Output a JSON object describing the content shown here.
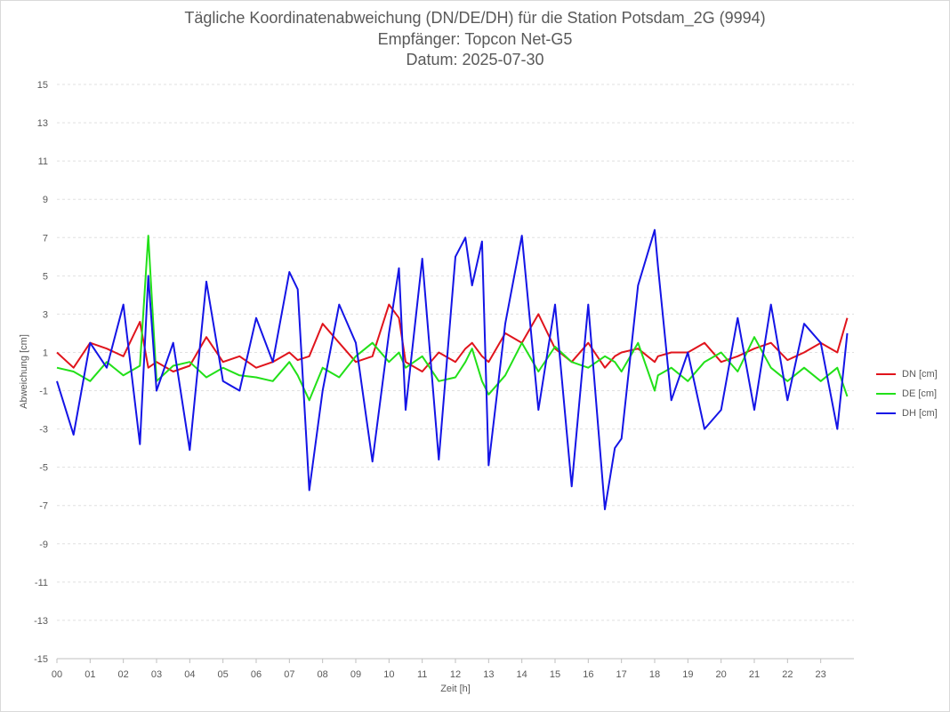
{
  "chart_data": {
    "type": "line",
    "title": "Tägliche Koordinatenabweichung (DN/DE/DH) für die Station Potsdam_2G (9994)",
    "subtitle": "Empfänger: Topcon Net-G5",
    "date_line": "Datum: 2025-07-30",
    "xlabel": "Zeit [h]",
    "ylabel": "Abweichung [cm]",
    "xlim": [
      0,
      24
    ],
    "ylim": [
      -15,
      15
    ],
    "x_ticks": [
      "00",
      "01",
      "02",
      "03",
      "04",
      "05",
      "06",
      "07",
      "08",
      "09",
      "10",
      "11",
      "12",
      "13",
      "14",
      "15",
      "16",
      "17",
      "18",
      "19",
      "20",
      "21",
      "22",
      "23"
    ],
    "y_ticks": [
      "15",
      "13",
      "11",
      "9",
      "7",
      "5",
      "3",
      "1",
      "-1",
      "-3",
      "-5",
      "-7",
      "-9",
      "-11",
      "-13",
      "-15"
    ],
    "grid": true,
    "legend_position": "right",
    "x": [
      0,
      0.5,
      1,
      1.5,
      2,
      2.5,
      2.75,
      3,
      3.5,
      4,
      4.5,
      5,
      5.5,
      6,
      6.5,
      7,
      7.25,
      7.6,
      8,
      8.5,
      9,
      9.5,
      10,
      10.3,
      10.5,
      11,
      11.5,
      12,
      12.3,
      12.5,
      12.8,
      13,
      13.5,
      14,
      14.5,
      15,
      15.5,
      16,
      16.5,
      16.8,
      17,
      17.5,
      18,
      18.1,
      18.5,
      19,
      19.5,
      20,
      20.5,
      21,
      21.5,
      22,
      22.5,
      23,
      23.5,
      23.8
    ],
    "series": [
      {
        "name": "DN [cm]",
        "color": "#e0141c",
        "values": [
          1,
          0.2,
          1.5,
          1.2,
          0.8,
          2.6,
          0.2,
          0.5,
          0.0,
          0.3,
          1.8,
          0.5,
          0.8,
          0.2,
          0.5,
          1.0,
          0.6,
          0.8,
          2.5,
          1.5,
          0.5,
          0.8,
          3.5,
          2.8,
          0.5,
          0.0,
          1.0,
          0.5,
          1.2,
          1.5,
          0.8,
          0.5,
          2.0,
          1.5,
          3.0,
          1.2,
          0.5,
          1.5,
          0.2,
          0.8,
          1.0,
          1.2,
          0.5,
          0.8,
          1.0,
          1.0,
          1.5,
          0.5,
          0.8,
          1.2,
          1.5,
          0.6,
          1.0,
          1.5,
          1.0,
          2.8
        ]
      },
      {
        "name": "DE [cm]",
        "color": "#22e019",
        "values": [
          0.2,
          0.0,
          -0.5,
          0.5,
          -0.2,
          0.3,
          7.1,
          -0.5,
          0.3,
          0.5,
          -0.3,
          0.2,
          -0.2,
          -0.3,
          -0.5,
          0.5,
          -0.2,
          -1.5,
          0.2,
          -0.3,
          0.8,
          1.5,
          0.5,
          1.0,
          0.2,
          0.8,
          -0.5,
          -0.3,
          0.5,
          1.2,
          -0.5,
          -1.2,
          -0.2,
          1.5,
          0.0,
          1.3,
          0.5,
          0.2,
          0.8,
          0.5,
          0.0,
          1.5,
          -1.0,
          -0.2,
          0.2,
          -0.5,
          0.5,
          1.0,
          0.0,
          1.8,
          0.2,
          -0.5,
          0.2,
          -0.5,
          0.2,
          -1.3
        ]
      },
      {
        "name": "DH [cm]",
        "color": "#1414e6",
        "values": [
          -0.5,
          -3.3,
          1.5,
          0.2,
          3.5,
          -3.8,
          5.0,
          -1.0,
          1.5,
          -4.1,
          4.7,
          -0.5,
          -1.0,
          2.8,
          0.5,
          5.2,
          4.3,
          -6.2,
          -1.0,
          3.5,
          1.5,
          -4.7,
          2.0,
          5.4,
          -2.0,
          5.9,
          -4.6,
          6.0,
          7.0,
          4.5,
          6.8,
          -4.9,
          2.5,
          7.1,
          -2.0,
          3.5,
          -6.0,
          3.5,
          -7.2,
          -4.0,
          -3.5,
          4.5,
          7.4,
          5.5,
          -1.5,
          1.0,
          -3.0,
          -2.0,
          2.8,
          -2.0,
          3.5,
          -1.5,
          2.5,
          1.5,
          -3.0,
          2.0
        ]
      }
    ]
  }
}
